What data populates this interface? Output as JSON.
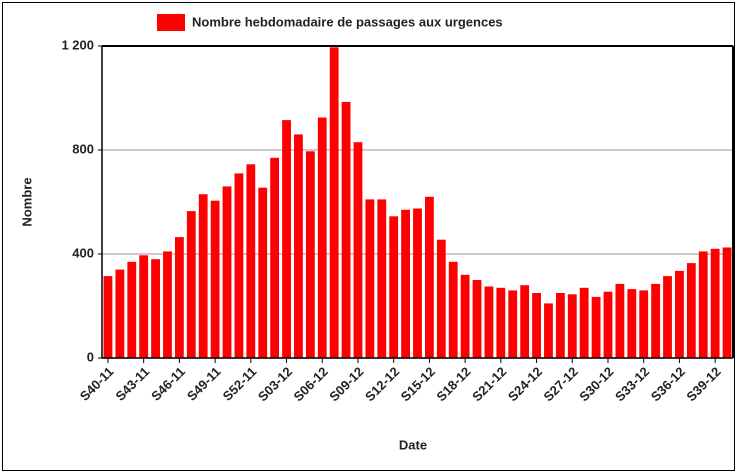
{
  "chart_data": {
    "type": "bar",
    "legend": "Nombre hebdomadaire de passages aux urgences",
    "x_label": "Date",
    "y_label": "Nombre",
    "color": "#ff0000",
    "categories": [
      "S40-11",
      null,
      null,
      "S43-11",
      null,
      null,
      "S46-11",
      null,
      null,
      "S49-11",
      null,
      null,
      "S52-11",
      null,
      null,
      "S03-12",
      null,
      null,
      "S06-12",
      null,
      null,
      "S09-12",
      null,
      null,
      "S12-12",
      null,
      null,
      "S15-12",
      null,
      null,
      "S18-12",
      null,
      null,
      "S21-12",
      null,
      null,
      "S24-12",
      null,
      null,
      "S27-12",
      null,
      null,
      "S30-12",
      null,
      null,
      "S33-12",
      null,
      null,
      "S36-12",
      null,
      null,
      "S39-12",
      null
    ],
    "values": [
      315,
      340,
      370,
      395,
      380,
      410,
      465,
      565,
      630,
      605,
      660,
      710,
      745,
      655,
      770,
      915,
      860,
      795,
      925,
      1195,
      985,
      830,
      610,
      610,
      545,
      570,
      575,
      620,
      455,
      370,
      320,
      300,
      275,
      270,
      260,
      280,
      250,
      210,
      250,
      245,
      270,
      235,
      255,
      285,
      265,
      260,
      285,
      315,
      335,
      365,
      410,
      420,
      425
    ],
    "ylim": [
      0,
      1200
    ],
    "yticks": [
      0,
      400,
      800,
      {
        "value": 1200,
        "label": "1 200"
      }
    ],
    "grid": true
  }
}
